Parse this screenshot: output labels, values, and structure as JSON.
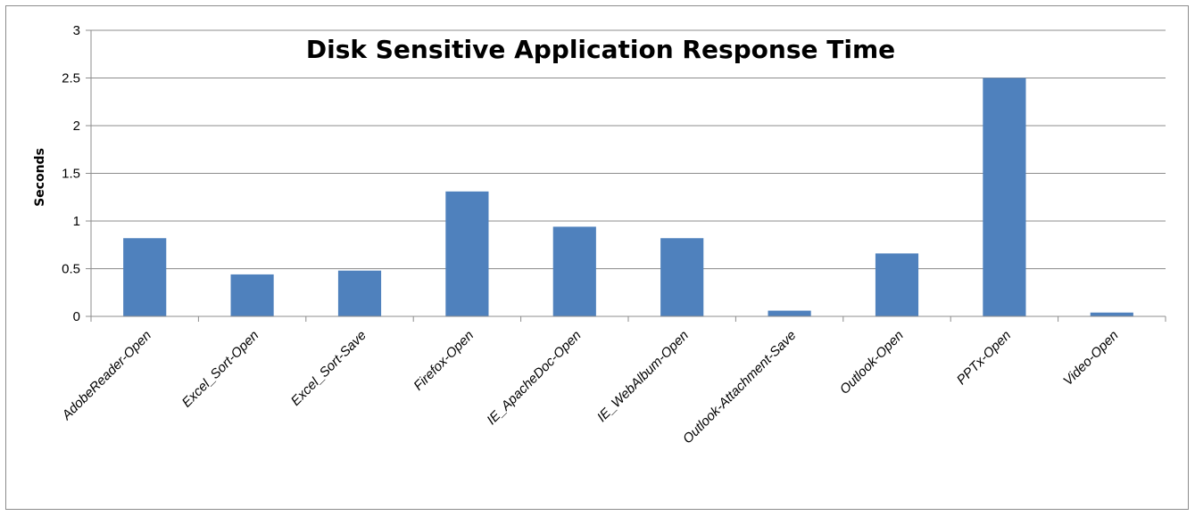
{
  "chart_data": {
    "type": "bar",
    "title": "Disk Sensitive Application Response Time",
    "xlabel": "",
    "ylabel": "Seconds",
    "ylim": [
      0,
      3
    ],
    "yticks": [
      "0",
      "0.5",
      "1",
      "1.5",
      "2",
      "2.5",
      "3"
    ],
    "grid": true,
    "legend": "none",
    "bar_color": "#4f81bd",
    "categories": [
      "AdobeReader-Open",
      "Excel_Sort-Open",
      "Excel_Sort-Save",
      "Firefox-Open",
      "IE_ApacheDoc-Open",
      "IE_WebAlbum-Open",
      "Outlook-Attachment-Save",
      "Outlook-Open",
      "PPTx-Open",
      "Video-Open"
    ],
    "values": [
      0.82,
      0.44,
      0.48,
      1.31,
      0.94,
      0.82,
      0.06,
      0.66,
      2.5,
      0.04
    ]
  }
}
